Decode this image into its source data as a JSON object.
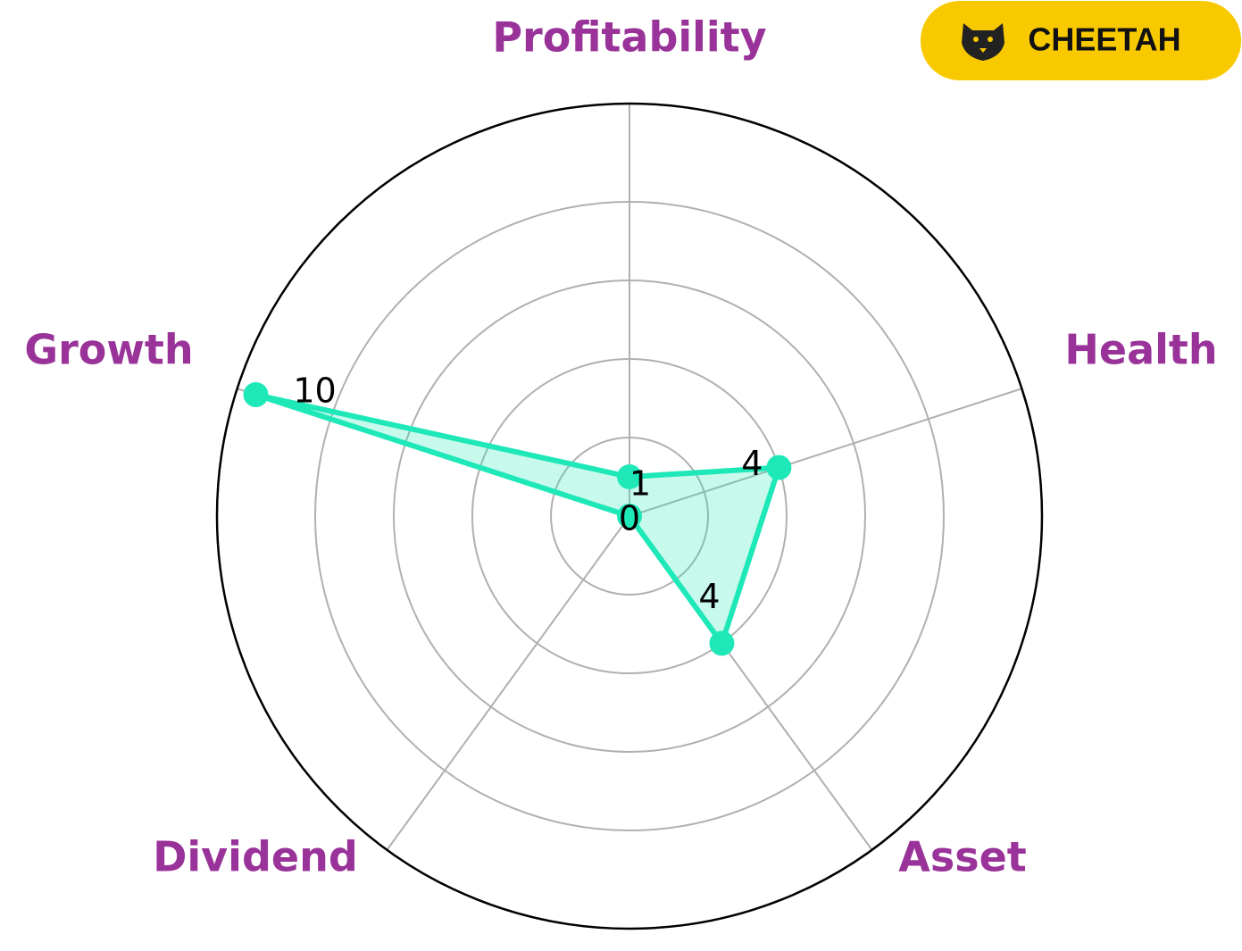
{
  "chart_data": {
    "type": "radar",
    "categories": [
      "Profitability",
      "Health",
      "Asset",
      "Dividend",
      "Growth"
    ],
    "values": [
      1,
      4,
      4,
      0,
      10
    ],
    "color": "#1ee8b8",
    "ylim": [
      0,
      10.5
    ],
    "yticks": [
      2,
      4,
      6,
      8
    ],
    "grid": true
  },
  "badge": {
    "label": "CHEETAH"
  }
}
